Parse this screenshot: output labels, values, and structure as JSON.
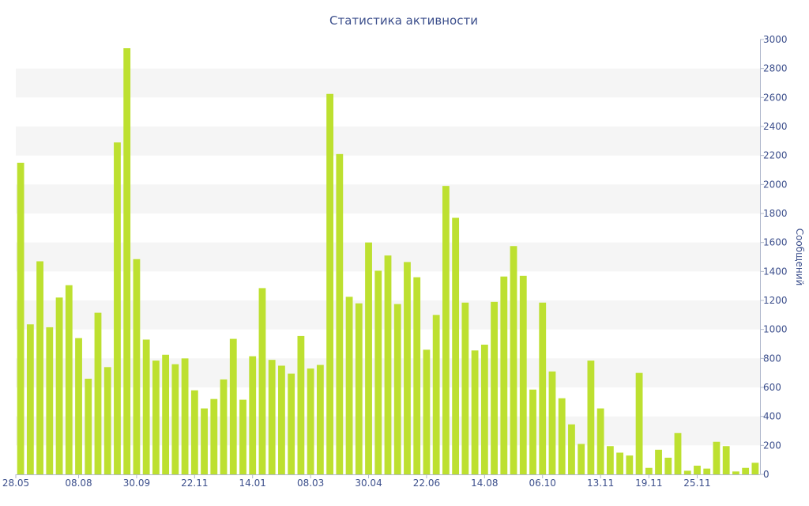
{
  "chart_data": {
    "type": "bar",
    "title": "Статистика активности",
    "xlabel": "",
    "ylabel": "Сообщений",
    "y_axis_side": "right",
    "ylim": [
      0,
      3000
    ],
    "y_ticks": [
      0,
      200,
      400,
      600,
      800,
      1000,
      1200,
      1400,
      1600,
      1800,
      2000,
      2200,
      2400,
      2600,
      2800,
      3000
    ],
    "x_tick_labels": [
      {
        "index": 0,
        "label": "28.05"
      },
      {
        "index": 6,
        "label": "08.08"
      },
      {
        "index": 12,
        "label": "30.09"
      },
      {
        "index": 18,
        "label": "22.11"
      },
      {
        "index": 24,
        "label": "14.01"
      },
      {
        "index": 30,
        "label": "08.03"
      },
      {
        "index": 36,
        "label": "30.04"
      },
      {
        "index": 42,
        "label": "22.06"
      },
      {
        "index": 48,
        "label": "14.08"
      },
      {
        "index": 54,
        "label": "06.10"
      },
      {
        "index": 60,
        "label": "13.11"
      },
      {
        "index": 65,
        "label": "19.11"
      },
      {
        "index": 70,
        "label": "25.11"
      }
    ],
    "values": [
      2150,
      1035,
      1470,
      1015,
      1220,
      1305,
      940,
      660,
      1115,
      740,
      2290,
      2940,
      1485,
      930,
      785,
      825,
      760,
      800,
      580,
      455,
      520,
      655,
      935,
      515,
      815,
      1285,
      790,
      750,
      695,
      955,
      730,
      755,
      2625,
      2210,
      1225,
      1180,
      1600,
      1405,
      1510,
      1175,
      1465,
      1360,
      860,
      1100,
      1990,
      1770,
      1185,
      855,
      895,
      1190,
      1365,
      1575,
      1370,
      585,
      1185,
      710,
      525,
      345,
      210,
      785,
      455,
      195,
      150,
      130,
      700,
      45,
      170,
      115,
      285,
      25,
      60,
      40,
      225,
      195,
      20,
      45,
      80
    ],
    "bar_color": "#bde030",
    "grid": true,
    "grid_style": "alternating horizontal bands",
    "band_color": "#f5f5f5",
    "text_color": "#3c4f8c",
    "legend": "none"
  }
}
